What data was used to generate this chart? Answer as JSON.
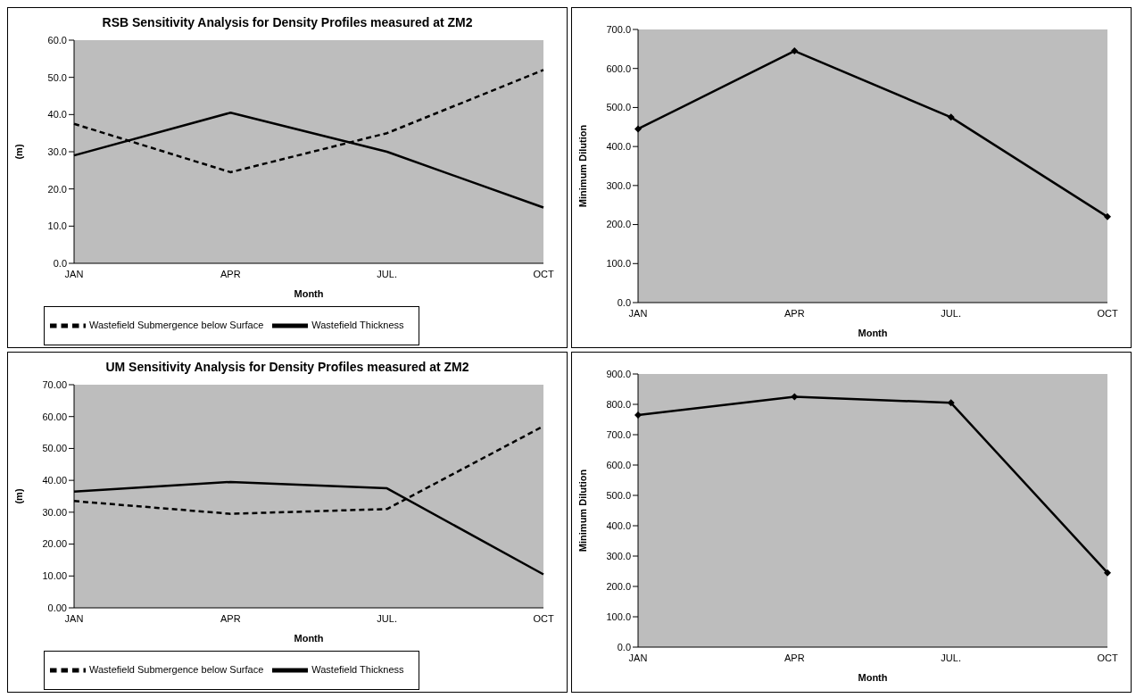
{
  "chart_data": [
    {
      "type": "line",
      "title": "RSB Sensitivity Analysis for Density Profiles measured at ZM2",
      "xlabel": "Month",
      "ylabel": "(m)",
      "categories": [
        "JAN",
        "APR",
        "JUL.",
        "OCT"
      ],
      "series": [
        {
          "name": "Wastefield Thickness",
          "color": "#000000",
          "line_style": "solid",
          "values": [
            29,
            40.5,
            30,
            15
          ]
        },
        {
          "name": "Wastefield Submergence below Surface",
          "color": "#000000",
          "line_style": "dashed",
          "values": [
            37.5,
            24.5,
            35,
            52
          ]
        }
      ],
      "ylim": [
        0,
        60
      ],
      "yticks": [
        {
          "value": 0,
          "label": "0.0"
        },
        {
          "value": 10,
          "label": "10.0"
        },
        {
          "value": 20,
          "label": "20.0"
        },
        {
          "value": 30,
          "label": "30.0"
        },
        {
          "value": 40,
          "label": "40.0"
        },
        {
          "value": 50,
          "label": "50.0"
        },
        {
          "value": 60,
          "label": "60.0"
        }
      ],
      "grid": false,
      "legend": "bottom",
      "marker": "none"
    },
    {
      "type": "line",
      "xlabel": "Month",
      "ylabel": "Minimum Dilution",
      "categories": [
        "JAN",
        "APR",
        "JUL.",
        "OCT"
      ],
      "series": [
        {
          "color": "#000000",
          "line_style": "solid",
          "values": [
            445,
            645,
            475,
            220
          ]
        }
      ],
      "ylim": [
        0,
        700
      ],
      "yticks": [
        {
          "value": 0,
          "label": "0.0"
        },
        {
          "value": 100,
          "label": "100.0"
        },
        {
          "value": 200,
          "label": "200.0"
        },
        {
          "value": 300,
          "label": "300.0"
        },
        {
          "value": 400,
          "label": "400.0"
        },
        {
          "value": 500,
          "label": "500.0"
        },
        {
          "value": 600,
          "label": "600.0"
        },
        {
          "value": 700,
          "label": "700.0"
        }
      ],
      "grid": false,
      "marker": "diamond"
    },
    {
      "type": "line",
      "title": "UM Sensitivity Analysis for Density Profiles measured at ZM2",
      "xlabel": "Month",
      "ylabel": "(m)",
      "categories": [
        "JAN",
        "APR",
        "JUL.",
        "OCT"
      ],
      "series": [
        {
          "name": "Wastefield Thickness",
          "color": "#000000",
          "line_style": "solid",
          "values": [
            36.5,
            39.5,
            37.5,
            10.5
          ]
        },
        {
          "name": "Wastefield Submergence below Surface",
          "color": "#000000",
          "line_style": "dashed",
          "values": [
            33.5,
            29.5,
            31,
            57
          ]
        }
      ],
      "ylim": [
        0,
        70
      ],
      "yticks": [
        {
          "value": 0,
          "label": "0.00"
        },
        {
          "value": 10,
          "label": "10.00"
        },
        {
          "value": 20,
          "label": "20.00"
        },
        {
          "value": 30,
          "label": "30.00"
        },
        {
          "value": 40,
          "label": "40.00"
        },
        {
          "value": 50,
          "label": "50.00"
        },
        {
          "value": 60,
          "label": "60.00"
        },
        {
          "value": 70,
          "label": "70.00"
        }
      ],
      "grid": false,
      "legend": "bottom",
      "marker": "none"
    },
    {
      "type": "line",
      "xlabel": "Month",
      "ylabel": "Minimum Dilution",
      "categories": [
        "JAN",
        "APR",
        "JUL.",
        "OCT"
      ],
      "series": [
        {
          "color": "#000000",
          "line_style": "solid",
          "values": [
            765,
            825,
            805,
            245
          ]
        }
      ],
      "ylim": [
        0,
        900
      ],
      "yticks": [
        {
          "value": 0,
          "label": "0.0"
        },
        {
          "value": 100,
          "label": "100.0"
        },
        {
          "value": 200,
          "label": "200.0"
        },
        {
          "value": 300,
          "label": "300.0"
        },
        {
          "value": 400,
          "label": "400.0"
        },
        {
          "value": 500,
          "label": "500.0"
        },
        {
          "value": 600,
          "label": "600.0"
        },
        {
          "value": 700,
          "label": "700.0"
        },
        {
          "value": 800,
          "label": "800.0"
        },
        {
          "value": 900,
          "label": "900.0"
        }
      ],
      "grid": false,
      "marker": "diamond"
    }
  ]
}
